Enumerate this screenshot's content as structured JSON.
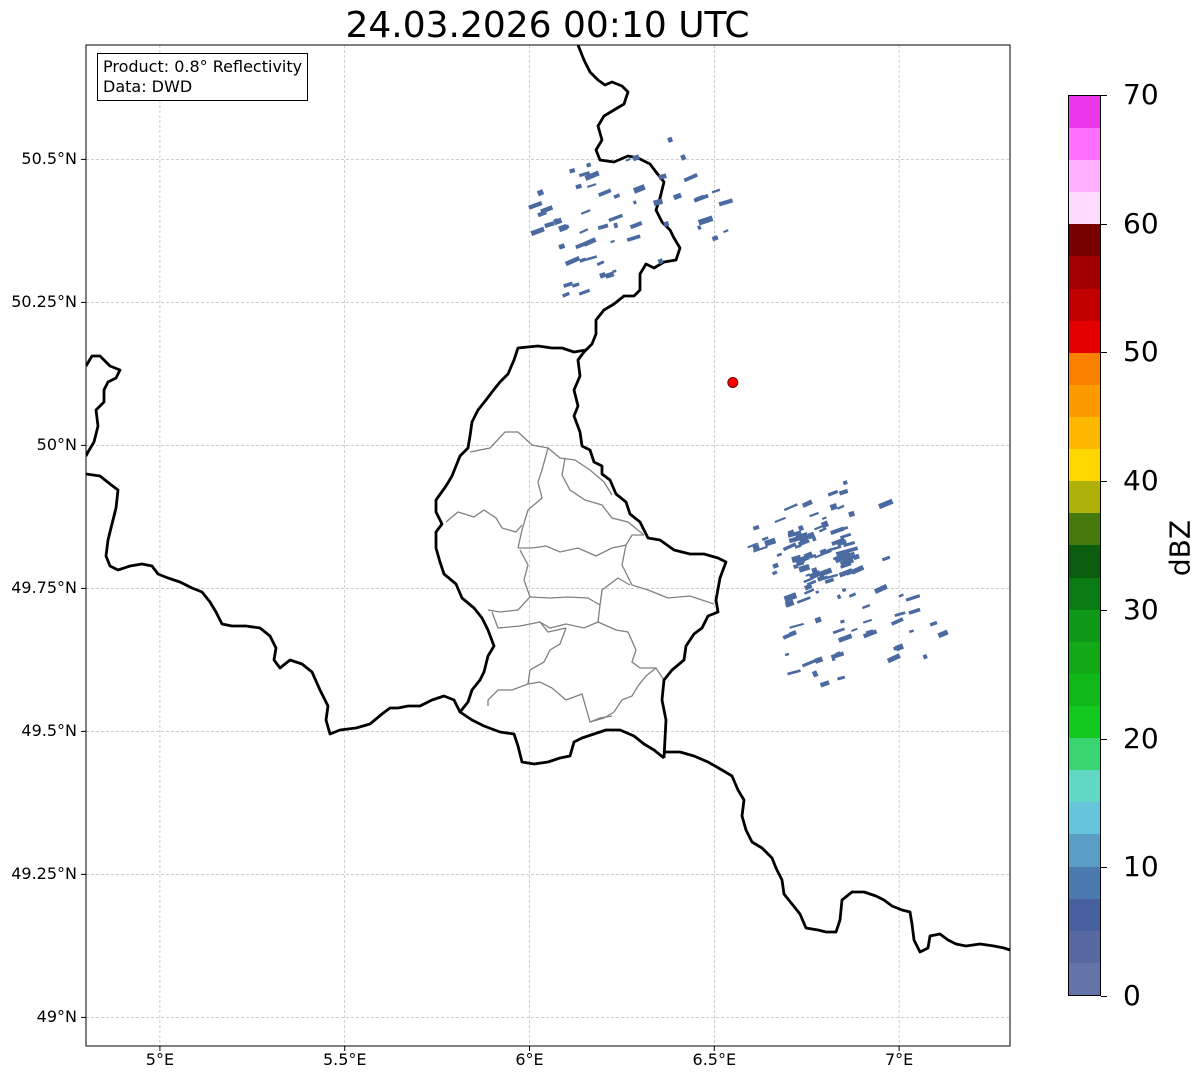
{
  "title": "24.03.2026 00:10 UTC",
  "info": {
    "product": "Product: 0.8° Reflectivity",
    "data": "Data: DWD"
  },
  "map": {
    "extent": {
      "lon_min": 4.8,
      "lon_max": 7.3,
      "lat_min": 48.95,
      "lat_max": 50.7
    },
    "lat_ticks": [
      {
        "value": 50.5,
        "label": "50.5°N"
      },
      {
        "value": 50.25,
        "label": "50.25°N"
      },
      {
        "value": 50.0,
        "label": "50°N"
      },
      {
        "value": 49.75,
        "label": "49.75°N"
      },
      {
        "value": 49.5,
        "label": "49.5°N"
      },
      {
        "value": 49.25,
        "label": "49.25°N"
      },
      {
        "value": 49.0,
        "label": "49°N"
      }
    ],
    "lon_ticks": [
      {
        "value": 5.0,
        "label": "5°E"
      },
      {
        "value": 5.5,
        "label": "5.5°E"
      },
      {
        "value": 6.0,
        "label": "6°E"
      },
      {
        "value": 6.5,
        "label": "6.5°E"
      },
      {
        "value": 7.0,
        "label": "7°E"
      }
    ],
    "radar_site": {
      "lon": 6.55,
      "lat": 50.11,
      "color": "#ff0000"
    },
    "border_color": "#000000",
    "admin_color": "#808080",
    "grid_color": "#b0b0b0",
    "echo_color": "#4a6aa0"
  },
  "colorbar": {
    "label": "dBZ",
    "ticks": [
      "0",
      "10",
      "20",
      "30",
      "40",
      "50",
      "60",
      "70"
    ],
    "min": 0,
    "max": 70,
    "colors": [
      "#6474a8",
      "#5868a0",
      "#4660a0",
      "#4a7ab0",
      "#5a9ec6",
      "#66c4dc",
      "#60d8c4",
      "#3ad470",
      "#12c81e",
      "#10b81a",
      "#12a816",
      "#109818",
      "#0a7a12",
      "#0a5c0e",
      "#467a0c",
      "#b0b00a",
      "#fed600",
      "#fdb700",
      "#fc9a00",
      "#fa8000",
      "#e40000",
      "#c20000",
      "#a00000",
      "#780000",
      "#ffdcff",
      "#ffb0ff",
      "#ff70ff",
      "#ea38ea"
    ]
  },
  "chart_data": {
    "type": "map",
    "title": "24.03.2026 00:10 UTC",
    "xlim": [
      4.8,
      7.3
    ],
    "ylim": [
      48.95,
      50.7
    ],
    "colorbar_range": [
      0,
      70
    ],
    "colorbar_label": "dBZ"
  }
}
